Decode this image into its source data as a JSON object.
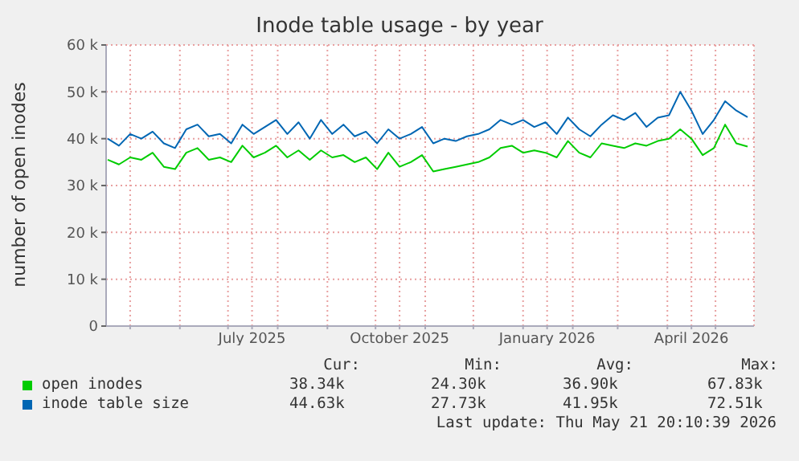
{
  "chart_data": {
    "type": "line",
    "title": "Inode table usage - by year",
    "ylabel": "number of open inodes",
    "x": [
      "2025-04-17",
      "2025-04-24",
      "2025-05-01",
      "2025-05-08",
      "2025-05-15",
      "2025-05-22",
      "2025-05-29",
      "2025-06-05",
      "2025-06-12",
      "2025-06-19",
      "2025-06-26",
      "2025-07-03",
      "2025-07-10",
      "2025-07-17",
      "2025-07-24",
      "2025-07-31",
      "2025-08-07",
      "2025-08-14",
      "2025-08-21",
      "2025-08-28",
      "2025-09-04",
      "2025-09-11",
      "2025-09-18",
      "2025-09-25",
      "2025-10-02",
      "2025-10-09",
      "2025-10-16",
      "2025-10-23",
      "2025-10-30",
      "2025-11-06",
      "2025-11-13",
      "2025-11-20",
      "2025-11-27",
      "2025-12-04",
      "2025-12-11",
      "2025-12-18",
      "2025-12-25",
      "2026-01-01",
      "2026-01-08",
      "2026-01-15",
      "2026-01-22",
      "2026-01-29",
      "2026-02-05",
      "2026-02-12",
      "2026-02-19",
      "2026-02-26",
      "2026-03-05",
      "2026-03-12",
      "2026-03-19",
      "2026-03-26",
      "2026-04-02",
      "2026-04-09",
      "2026-04-16",
      "2026-04-23",
      "2026-04-30",
      "2026-05-07",
      "2026-05-14",
      "2026-05-21"
    ],
    "series": [
      {
        "name": "open inodes",
        "color": "#00cc00",
        "values": [
          35500,
          34500,
          36000,
          35500,
          37000,
          34000,
          33500,
          37000,
          38000,
          35500,
          36000,
          35000,
          38500,
          36000,
          37000,
          38500,
          36000,
          37500,
          35500,
          37500,
          36000,
          36500,
          35000,
          36000,
          33500,
          37000,
          34000,
          35000,
          36500,
          33000,
          33500,
          34000,
          34500,
          35000,
          36000,
          38000,
          38500,
          37000,
          37500,
          37000,
          36000,
          39500,
          37000,
          36000,
          39000,
          38500,
          38000,
          39000,
          38500,
          39500,
          40000,
          42000,
          40000,
          36500,
          38000,
          43000,
          39000,
          38300
        ]
      },
      {
        "name": "inode table size",
        "color": "#0066b3",
        "values": [
          40000,
          38500,
          41000,
          40000,
          41500,
          39000,
          38000,
          42000,
          43000,
          40500,
          41000,
          39000,
          43000,
          41000,
          42500,
          44000,
          41000,
          43500,
          40000,
          44000,
          41000,
          43000,
          40500,
          41500,
          39000,
          42000,
          40000,
          41000,
          42500,
          39000,
          40000,
          39500,
          40500,
          41000,
          42000,
          44000,
          43000,
          44000,
          42500,
          43500,
          41000,
          44500,
          42000,
          40500,
          43000,
          45000,
          44000,
          45500,
          42500,
          44500,
          45000,
          50000,
          46000,
          41000,
          44000,
          48000,
          46000,
          44600
        ]
      }
    ],
    "xlim": [
      "2025-04-16",
      "2026-05-25"
    ],
    "xticks": [
      {
        "value": "2025-05-01",
        "label": null
      },
      {
        "value": "2025-06-01",
        "label": null
      },
      {
        "value": "2025-07-01",
        "label": null
      },
      {
        "value": "2025-07-16",
        "label": "July 2025"
      },
      {
        "value": "2025-08-01",
        "label": null
      },
      {
        "value": "2025-09-01",
        "label": null
      },
      {
        "value": "2025-10-01",
        "label": null
      },
      {
        "value": "2025-10-16",
        "label": "October 2025"
      },
      {
        "value": "2025-11-01",
        "label": null
      },
      {
        "value": "2025-12-01",
        "label": null
      },
      {
        "value": "2026-01-01",
        "label": null
      },
      {
        "value": "2026-01-16",
        "label": "January 2026"
      },
      {
        "value": "2026-02-01",
        "label": null
      },
      {
        "value": "2026-03-01",
        "label": null
      },
      {
        "value": "2026-04-01",
        "label": null
      },
      {
        "value": "2026-04-16",
        "label": "April 2026"
      },
      {
        "value": "2026-05-01",
        "label": null
      }
    ],
    "ylim": [
      0,
      60000
    ],
    "yticks": [
      0,
      {
        "value": 10000,
        "label": "10 k"
      },
      {
        "value": 20000,
        "label": "20 k"
      },
      {
        "value": 30000,
        "label": "30 k"
      },
      {
        "value": 40000,
        "label": "40 k"
      },
      {
        "value": 50000,
        "label": "50 k"
      },
      {
        "value": 60000,
        "label": "60 k"
      }
    ],
    "grid": true,
    "legend": "bottom left",
    "marker": "none",
    "line_style": "solid",
    "annotations": [
      "Cur:",
      "Min:",
      "Avg:",
      "Max:",
      "38.34k",
      "24.30k",
      "36.90k",
      "67.83k",
      "44.63k",
      "27.73k",
      "41.95k",
      "72.51k",
      "Last update: Thu May 21 20:10:39 2026"
    ]
  }
}
